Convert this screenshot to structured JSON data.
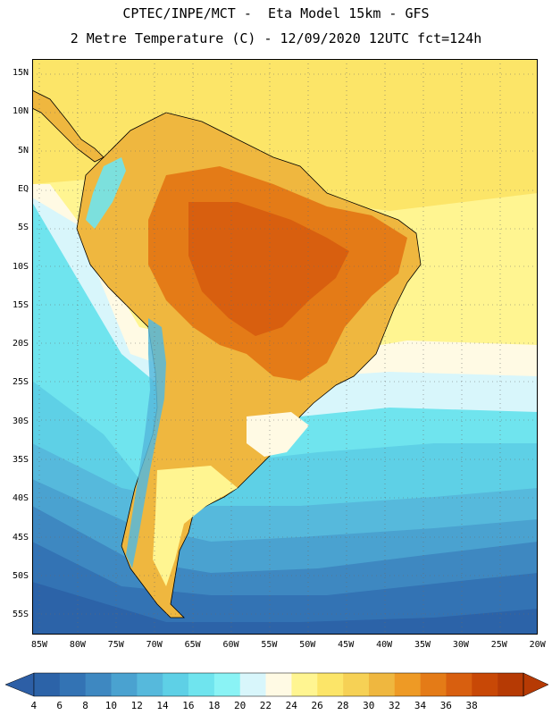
{
  "header": {
    "line1": "CPTEC/INPE/MCT -  Eta Model 15km - GFS",
    "line2": "2 Metre Temperature (C) - 12/09/2020 12UTC fct=124h"
  },
  "map": {
    "lat_labels": [
      "15N",
      "10N",
      "5N",
      "EQ",
      "5S",
      "10S",
      "15S",
      "20S",
      "25S",
      "30S",
      "35S",
      "40S",
      "45S",
      "50S",
      "55S"
    ],
    "lon_labels": [
      "85W",
      "80W",
      "75W",
      "70W",
      "65W",
      "60W",
      "55W",
      "50W",
      "45W",
      "40W",
      "35W",
      "30W",
      "25W",
      "20W"
    ],
    "lat_range": [
      -57.5,
      16
    ],
    "lon_range": [
      -85.5,
      -19.5
    ]
  },
  "legend": {
    "labels": [
      "4",
      "6",
      "8",
      "10",
      "12",
      "14",
      "16",
      "18",
      "20",
      "22",
      "24",
      "26",
      "28",
      "30",
      "32",
      "34",
      "36",
      "38"
    ],
    "colors": [
      "#2c63a8",
      "#3373b4",
      "#3e88c1",
      "#4aa2d0",
      "#56b9dc",
      "#5ed0e6",
      "#6fe4ee",
      "#8af3f5",
      "#d8f6fb",
      "#fffae4",
      "#fff591",
      "#fce568",
      "#f6d155",
      "#efb73f",
      "#ee9a25",
      "#e47b17",
      "#d85f0f",
      "#c84806",
      "#b63a04"
    ],
    "underflow_color": "#2d5fa6",
    "overflow_color": "#b63a04"
  }
}
